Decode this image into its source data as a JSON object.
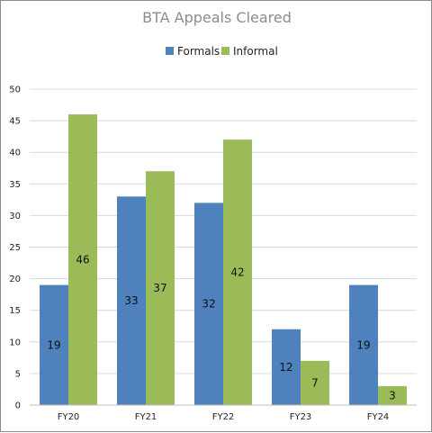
{
  "chart_data": {
    "type": "bar",
    "title": "BTA Appeals Cleared",
    "categories": [
      "FY20",
      "FY21",
      "FY22",
      "FY23",
      "FY24"
    ],
    "series": [
      {
        "name": "Formals",
        "values": [
          19,
          33,
          32,
          12,
          19
        ],
        "color": "#4f81bd"
      },
      {
        "name": "Informal",
        "values": [
          46,
          37,
          42,
          7,
          3
        ],
        "color": "#9bbb59"
      }
    ],
    "ylim": [
      0,
      50
    ],
    "yticks": [
      0,
      5,
      10,
      15,
      20,
      25,
      30,
      35,
      40,
      45,
      50
    ],
    "xlabel": "",
    "ylabel": "",
    "grid": true,
    "legend_position": "top-center",
    "data_labels": true
  }
}
